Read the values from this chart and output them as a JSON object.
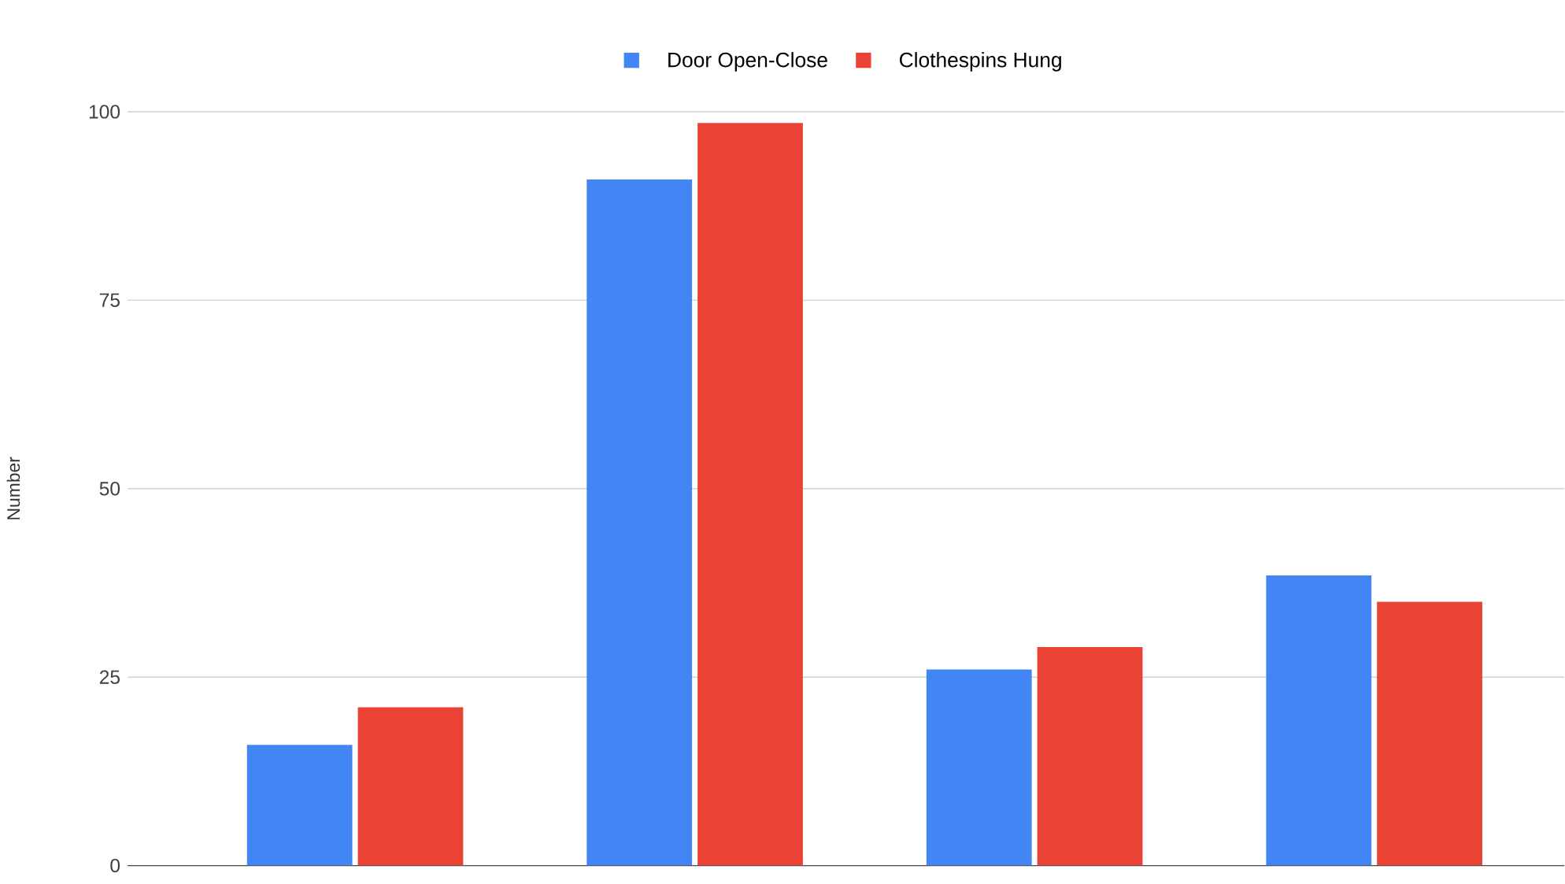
{
  "chart_data": {
    "type": "bar",
    "ylabel": "Number",
    "categories": [
      null,
      null,
      null,
      null
    ],
    "series": [
      {
        "name": "Door Open-Close",
        "color": "#4285f4",
        "values": [
          16,
          91,
          26,
          38.5
        ]
      },
      {
        "name": "Clothespins Hung",
        "color": "#ea4335",
        "values": [
          21,
          98.5,
          29,
          35
        ]
      }
    ],
    "ylim": [
      0,
      100
    ],
    "yticks": [
      0,
      25,
      50,
      75,
      100
    ],
    "grid": "y",
    "legend": "top"
  }
}
